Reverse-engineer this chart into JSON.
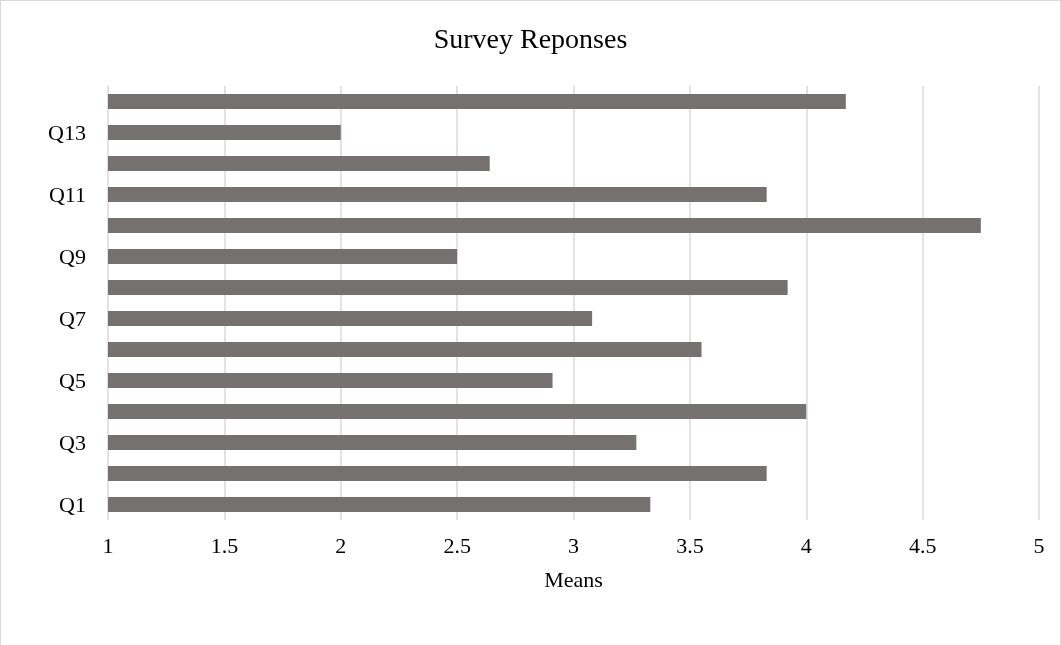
{
  "chart_data": {
    "type": "bar",
    "orientation": "horizontal",
    "title": "Survey Reponses",
    "xlabel": "Means",
    "categories": [
      null,
      "Q13",
      null,
      "Q11",
      null,
      "Q9",
      null,
      "Q7",
      null,
      "Q5",
      null,
      "Q3",
      null,
      "Q1"
    ],
    "values": [
      4.17,
      2.0,
      2.64,
      3.83,
      4.75,
      2.5,
      3.92,
      3.08,
      3.55,
      2.91,
      4.0,
      3.27,
      3.83,
      3.33
    ],
    "color": "#767171",
    "xlim": [
      1,
      5
    ],
    "xticks": [
      1,
      1.5,
      2,
      2.5,
      3,
      3.5,
      4,
      4.5,
      5
    ],
    "grid": "x"
  }
}
